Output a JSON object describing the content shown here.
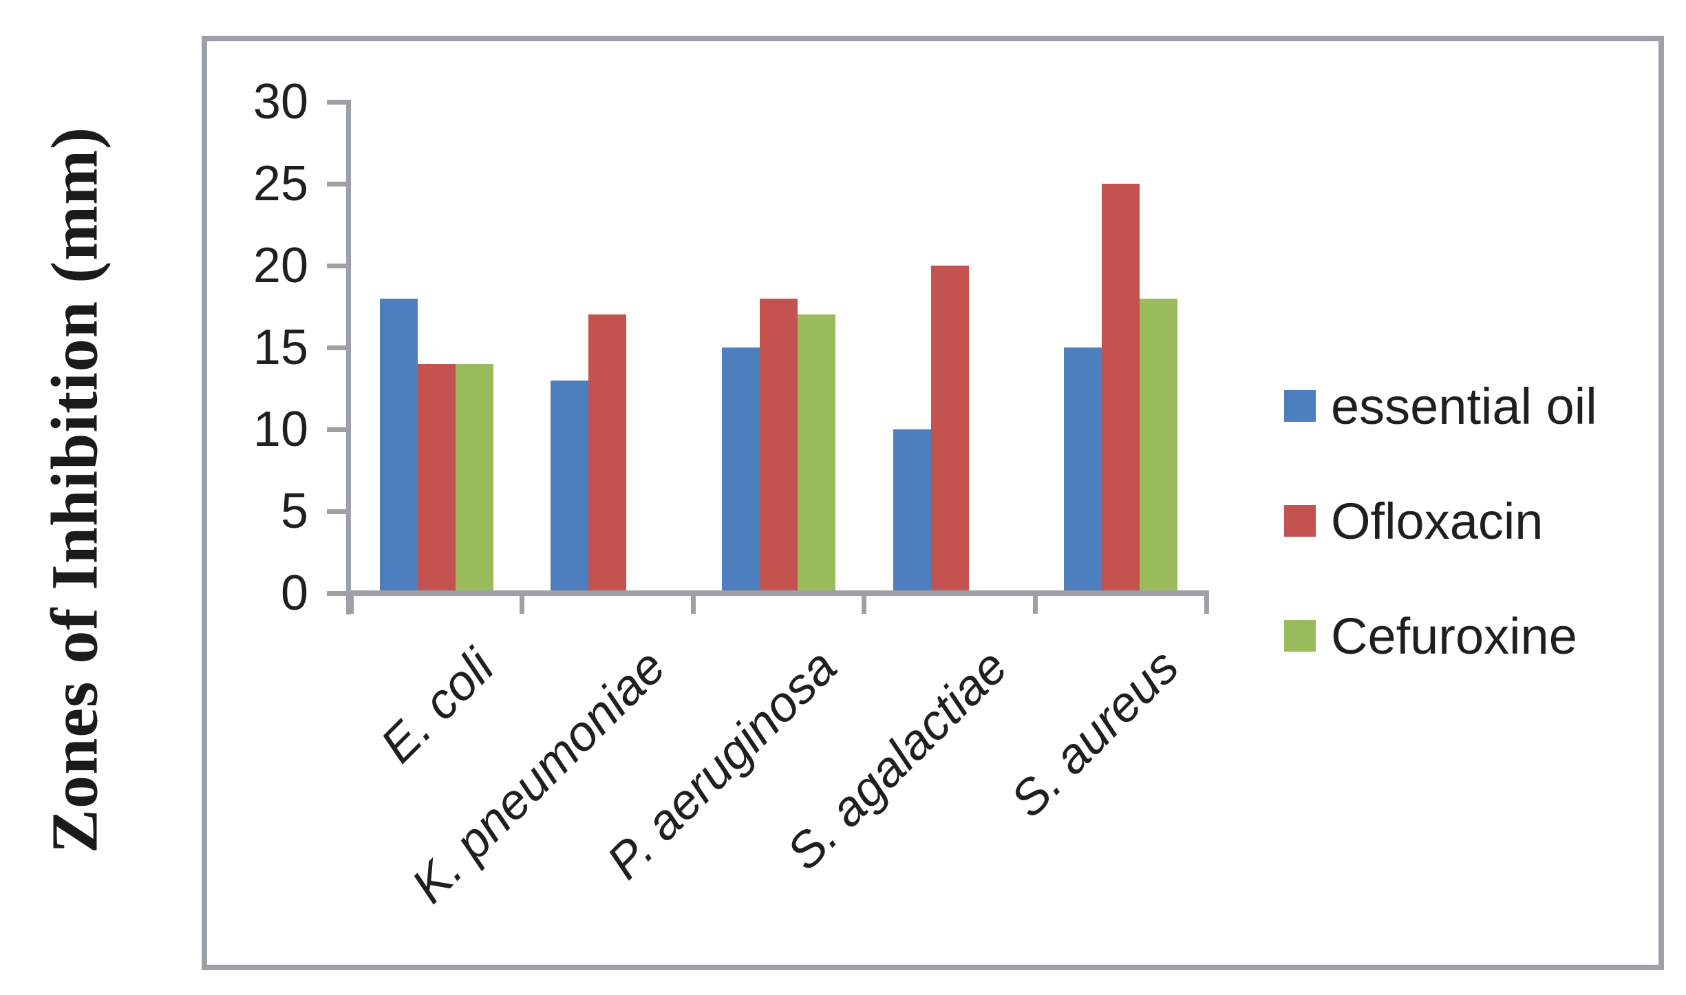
{
  "chart_data": {
    "type": "bar",
    "title": "",
    "ylabel": "Zones of Inhibition (mm)",
    "xlabel": "",
    "categories": [
      "E. coli",
      "K. pneumoniae",
      "P. aeruginosa",
      "S. agalactiae",
      "S. aureus"
    ],
    "series": [
      {
        "name": "essential oil",
        "color": "#4D7FBE",
        "values": [
          18,
          13,
          15,
          10,
          15
        ]
      },
      {
        "name": "Ofloxacin",
        "color": "#C4524E",
        "values": [
          14,
          17,
          18,
          20,
          25
        ]
      },
      {
        "name": "Cefuroxine",
        "color": "#9BBC5B",
        "values": [
          14,
          null,
          17,
          null,
          18
        ]
      }
    ],
    "ylim": [
      0,
      30
    ],
    "yticks": [
      0,
      5,
      10,
      15,
      20,
      25,
      30
    ],
    "grid": false,
    "legend_position": "right",
    "axis_color": "#9DA0A4",
    "text_color": "#1f1f1f"
  }
}
